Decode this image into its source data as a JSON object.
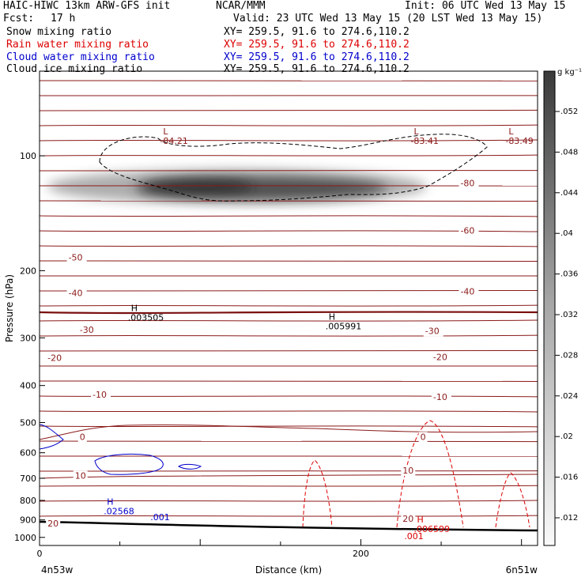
{
  "header": {
    "model": "HAIC-HIWC 13km ARW-GFS init",
    "org": "NCAR/MMM",
    "init": "Init: 06 UTC Wed 13 May 15",
    "fcst_label": "Fcst:",
    "fcst_value": "17 h",
    "valid": "Valid: 23 UTC Wed 13 May 15 (20 LST Wed 13 May 15)",
    "fields": [
      {
        "name": "Snow mixing ratio",
        "xy": "XY= 259.5, 91.6 to 274.6,110.2",
        "color": "#000000"
      },
      {
        "name": "Rain water mixing ratio",
        "xy": "XY= 259.5, 91.6 to 274.6,110.2",
        "color": "#dd0000"
      },
      {
        "name": "Cloud water mixing ratio",
        "xy": "XY= 259.5, 91.6 to 274.6,110.2",
        "color": "#0000cc"
      },
      {
        "name": "Cloud ice mixing ratio",
        "xy": "XY= 259.5, 91.6 to 274.6,110.2",
        "color": "#000000"
      }
    ]
  },
  "chart_data": {
    "type": "heatmap",
    "title": "",
    "xlabel": "Distance (km)",
    "ylabel": "Pressure (hPa)",
    "xlim": [
      0,
      310
    ],
    "ylim": [
      1050,
      60
    ],
    "y_scale": "log",
    "x_ticks": [
      0,
      200
    ],
    "y_ticks": [
      100,
      200,
      300,
      400,
      500,
      600,
      700,
      800,
      900,
      1000
    ],
    "endpoint_labels": {
      "left": "4n53w",
      "right": "6n51w"
    },
    "colorbar": {
      "unit": "g kg⁻¹",
      "ticks": [
        ".052",
        ".048",
        ".044",
        ".04",
        ".036",
        ".032",
        ".028",
        ".024",
        ".02",
        ".016",
        ".012"
      ]
    },
    "temperature_contour_labels": [
      {
        "text": "-80",
        "x": 262,
        "p": 120
      },
      {
        "text": "-60",
        "x": 262,
        "p": 160
      },
      {
        "text": "-50",
        "x": 18,
        "p": 188
      },
      {
        "text": "-40",
        "x": 18,
        "p": 233
      },
      {
        "text": "-40",
        "x": 262,
        "p": 231
      },
      {
        "text": "-30",
        "x": 25,
        "p": 291
      },
      {
        "text": "-30",
        "x": 240,
        "p": 293
      },
      {
        "text": "-20",
        "x": 5,
        "p": 345
      },
      {
        "text": "-20",
        "x": 245,
        "p": 343
      },
      {
        "text": "-10",
        "x": 33,
        "p": 430
      },
      {
        "text": "-10",
        "x": 245,
        "p": 436
      },
      {
        "text": "0",
        "x": 25,
        "p": 555
      },
      {
        "text": "0",
        "x": 237,
        "p": 555
      },
      {
        "text": "10",
        "x": 22,
        "p": 702
      },
      {
        "text": "10",
        "x": 226,
        "p": 680
      },
      {
        "text": "20",
        "x": 5,
        "p": 936
      },
      {
        "text": "20",
        "x": 226,
        "p": 911
      }
    ],
    "extrema": [
      {
        "type": "L",
        "value": "-84.21",
        "x": 75,
        "p": 93,
        "color": "#8b1a1a"
      },
      {
        "type": "L",
        "value": "-83.41",
        "x": 231,
        "p": 93,
        "color": "#8b1a1a"
      },
      {
        "type": "L",
        "value": "-83.49",
        "x": 290,
        "p": 93,
        "color": "#8b1a1a"
      },
      {
        "type": "H",
        "value": ".003505",
        "x": 55,
        "p": 270,
        "color": "#000000"
      },
      {
        "type": "H",
        "value": ".005991",
        "x": 178,
        "p": 285,
        "color": "#000000"
      },
      {
        "type": "H",
        "value": ".02568",
        "x": 40,
        "p": 870,
        "color": "#0000cc"
      },
      {
        "type": "H",
        "value": ".006599",
        "x": 233,
        "p": 968,
        "color": "#dd0000"
      }
    ],
    "contour_value_labels": [
      {
        "text": ".001",
        "x": 69,
        "p": 902,
        "color": "#0000cc"
      },
      {
        "text": ".001",
        "x": 227,
        "p": 1010,
        "color": "#dd0000"
      }
    ]
  }
}
